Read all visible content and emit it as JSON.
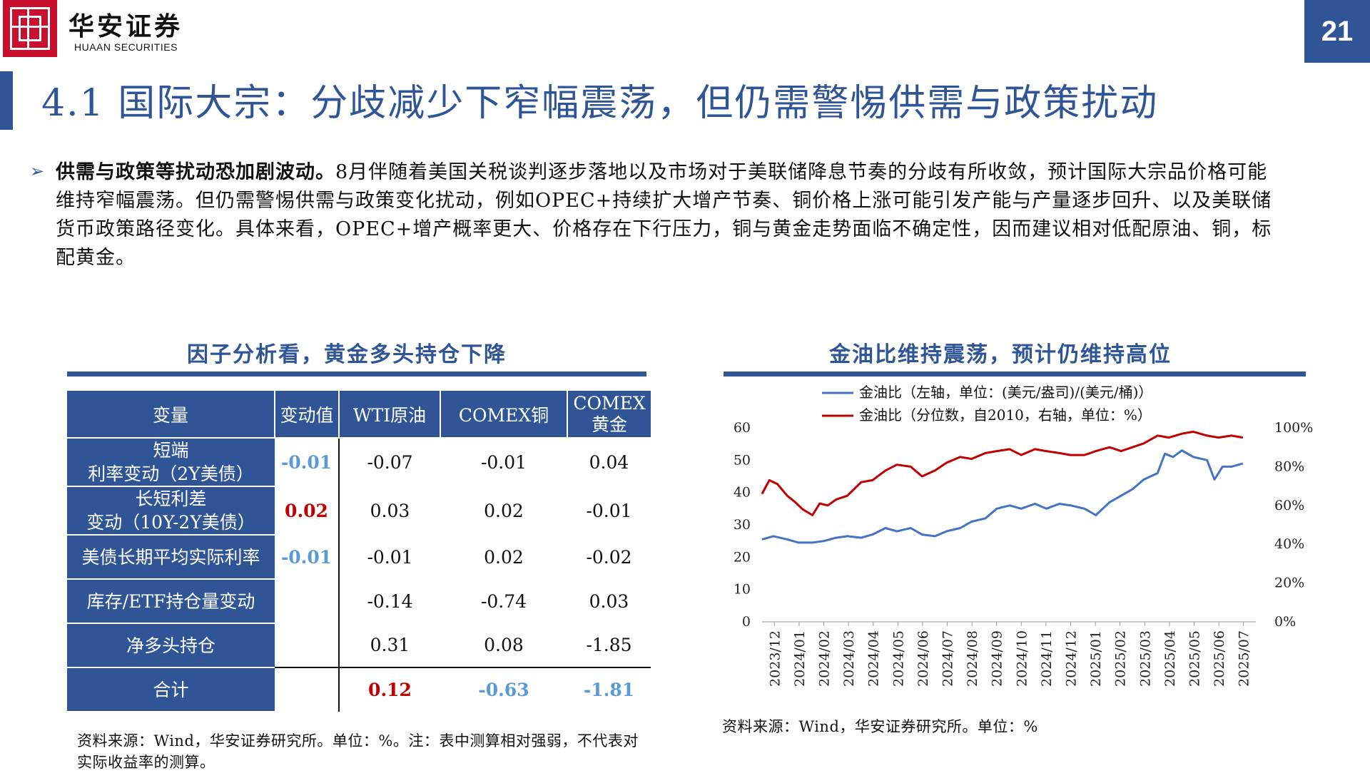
{
  "header": {
    "brand_cn": "华安证券",
    "brand_en": "HUAAN SECURITIES",
    "page_number": "21",
    "title": "4.1 国际大宗：分歧减少下窄幅震荡，但仍需警惕供需与政策扰动"
  },
  "intro": {
    "lead": "供需与政策等扰动恐加剧波动。",
    "text": "8月伴随着美国关税谈判逐步落地以及市场对于美联储降息节奏的分歧有所收敛，预计国际大宗品价格可能维持窄幅震荡。但仍需警惕供需与政策变化扰动，例如OPEC+持续扩大增产节奏、铜价格上涨可能引发产能与产量逐步回升、以及美联储货币政策路径变化。具体来看，OPEC+增产概率更大、价格存在下行压力，铜与黄金走势面临不确定性，因而建议相对低配原油、铜，标配黄金。"
  },
  "left_panel": {
    "title": "因子分析看，黄金多头持仓下降",
    "source": "资料来源：Wind，华安证券研究所。单位：%。注：表中测算相对强弱，不代表对实际收益率的测算。"
  },
  "right_panel": {
    "title": "金油比维持震荡，预计仍维持高位",
    "source": "资料来源：Wind，华安证券研究所。单位：%"
  },
  "colors": {
    "brand_blue": "#2f5597",
    "brand_red": "#c8102e",
    "positive_red": "#c00000",
    "negative_blue": "#5b9bd5",
    "series_blue": "#4472c4",
    "series_red": "#c00000"
  },
  "chart_data": [
    {
      "type": "table",
      "columns": [
        "变量",
        "变动值",
        "WTI原油",
        "COMEX铜",
        "COMEX黄金"
      ],
      "rows": [
        {
          "label_1": "短端",
          "label_2": "利率变动（2Y美债）",
          "change": "-0.01",
          "change_color": "blue",
          "wti": "-0.07",
          "copper": "-0.01",
          "gold": "0.04"
        },
        {
          "label_1": "长短利差",
          "label_2": "变动（10Y-2Y美债）",
          "change": "0.02",
          "change_color": "red",
          "wti": "0.03",
          "copper": "0.02",
          "gold": "-0.01"
        },
        {
          "label_1": "美债长期平均实际利率",
          "label_2": "",
          "change": "-0.01",
          "change_color": "blue",
          "wti": "-0.01",
          "copper": "0.02",
          "gold": "-0.02"
        },
        {
          "label_1": "库存/ETF持仓量变动",
          "label_2": "",
          "change": "",
          "change_color": "",
          "wti": "-0.14",
          "copper": "-0.74",
          "gold": "0.03"
        },
        {
          "label_1": "净多头持仓",
          "label_2": "",
          "change": "",
          "change_color": "",
          "wti": "0.31",
          "copper": "0.08",
          "gold": "-1.85"
        }
      ],
      "total": {
        "label": "合计",
        "wti": "0.12",
        "copper": "-0.63",
        "gold": "-1.81"
      }
    },
    {
      "type": "line",
      "x_ticks": [
        "2023/12",
        "2024/01",
        "2024/02",
        "2024/03",
        "2024/04",
        "2024/05",
        "2024/06",
        "2024/07",
        "2024/08",
        "2024/09",
        "2024/10",
        "2024/11",
        "2024/12",
        "2025/01",
        "2025/02",
        "2025/03",
        "2025/04",
        "2025/05",
        "2025/06",
        "2025/07"
      ],
      "y_left": {
        "ylim": [
          0,
          60
        ],
        "ticks": [
          "0",
          "10",
          "20",
          "30",
          "40",
          "50",
          "60"
        ]
      },
      "y_right": {
        "ylim": [
          0,
          100
        ],
        "ticks": [
          "0%",
          "20%",
          "40%",
          "60%",
          "80%",
          "100%"
        ]
      },
      "legend_placement": "top",
      "series": [
        {
          "name": "金油比（左轴，单位：(美元/盎司)/(美元/桶)）",
          "axis": "left",
          "color": "#4472c4",
          "x": [
            "2023/12/01",
            "2023/12/15",
            "2024/01/01",
            "2024/01/15",
            "2024/02/01",
            "2024/02/15",
            "2024/03/01",
            "2024/03/15",
            "2024/04/01",
            "2024/04/15",
            "2024/05/01",
            "2024/05/15",
            "2024/06/01",
            "2024/06/15",
            "2024/07/01",
            "2024/07/15",
            "2024/08/01",
            "2024/08/15",
            "2024/09/01",
            "2024/09/15",
            "2024/10/01",
            "2024/10/15",
            "2024/11/01",
            "2024/11/15",
            "2024/12/01",
            "2024/12/15",
            "2025/01/01",
            "2025/01/15",
            "2025/02/01",
            "2025/02/15",
            "2025/03/01",
            "2025/03/15",
            "2025/04/01",
            "2025/04/10",
            "2025/04/20",
            "2025/05/01",
            "2025/05/15",
            "2025/06/01",
            "2025/06/10",
            "2025/06/20",
            "2025/07/01",
            "2025/07/15"
          ],
          "values": [
            25.5,
            26.5,
            25.5,
            24.5,
            24.5,
            25,
            26,
            26.5,
            26,
            27,
            29,
            28,
            29,
            27,
            26.5,
            28,
            29,
            31,
            32,
            35,
            36,
            35,
            36.5,
            35,
            36.5,
            36,
            35,
            33,
            37,
            39,
            41,
            44,
            46,
            52,
            51,
            53,
            51,
            50,
            44,
            48,
            48,
            49
          ]
        },
        {
          "name": "金油比（分位数，自2010，右轴，单位：%）",
          "axis": "right",
          "color": "#c00000",
          "x": [
            "2023/12/01",
            "2023/12/10",
            "2023/12/20",
            "2024/01/01",
            "2024/01/10",
            "2024/01/20",
            "2024/02/01",
            "2024/02/10",
            "2024/02/20",
            "2024/03/01",
            "2024/03/15",
            "2024/04/01",
            "2024/04/15",
            "2024/05/01",
            "2024/05/15",
            "2024/06/01",
            "2024/06/15",
            "2024/07/01",
            "2024/07/15",
            "2024/08/01",
            "2024/08/15",
            "2024/09/01",
            "2024/09/15",
            "2024/10/01",
            "2024/10/15",
            "2024/11/01",
            "2024/11/15",
            "2024/12/01",
            "2024/12/15",
            "2025/01/01",
            "2025/01/15",
            "2025/02/01",
            "2025/02/15",
            "2025/03/01",
            "2025/03/15",
            "2025/04/01",
            "2025/04/15",
            "2025/05/01",
            "2025/05/15",
            "2025/06/01",
            "2025/06/15",
            "2025/07/01",
            "2025/07/15"
          ],
          "values": [
            66,
            73,
            71,
            65,
            62,
            58,
            55,
            61,
            60,
            63,
            65,
            72,
            73,
            78,
            81,
            80,
            75,
            78,
            82,
            85,
            84,
            87,
            88,
            89,
            86,
            89,
            88,
            87,
            86,
            86,
            88,
            90,
            88,
            90,
            92,
            96,
            95,
            97,
            98,
            96,
            95,
            96,
            95
          ]
        }
      ]
    }
  ]
}
